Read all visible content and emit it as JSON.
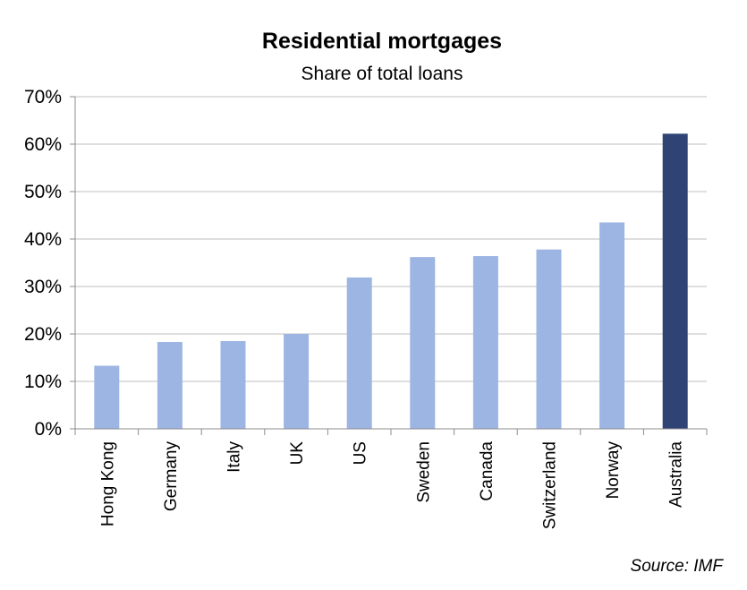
{
  "chart_data": {
    "type": "bar",
    "title": "Residential mortgages",
    "subtitle": "Share of total loans",
    "categories": [
      "Hong Kong",
      "Germany",
      "Italy",
      "UK",
      "US",
      "Sweden",
      "Canada",
      "Switzerland",
      "Norway",
      "Australia"
    ],
    "values": [
      13.3,
      18.3,
      18.5,
      20.0,
      31.9,
      36.2,
      36.4,
      37.8,
      43.5,
      62.2
    ],
    "highlight": "Australia",
    "ylim": [
      0,
      70
    ],
    "yticks": [
      "0%",
      "10%",
      "20%",
      "30%",
      "40%",
      "50%",
      "60%",
      "70%"
    ],
    "grid": true,
    "legend": "none",
    "source": "Source: IMF",
    "colors": {
      "bar": "#9DB5E3",
      "highlight": "#2F4475",
      "grid": "#BFBFBF",
      "axis": "#8C8C8C"
    }
  }
}
